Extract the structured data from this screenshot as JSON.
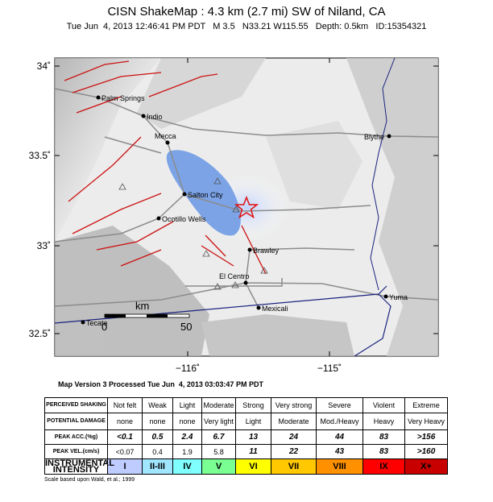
{
  "header": {
    "title": "CISN ShakeMap : 4.3 km (2.7 mi) SW of Niland, CA",
    "subtitle": "Tue Jun  4, 2013 12:46:41 PM PDT   M 3.5   N33.21 W115.55   Depth: 0.5km   ID:15354321"
  },
  "map": {
    "lat_labels": [
      "34˚",
      "33.5˚",
      "33˚",
      "32.5˚"
    ],
    "lon_labels": [
      "−116˚",
      "−115˚"
    ],
    "places": [
      "Palm Springs",
      "Indio",
      "Mecca",
      "Blythe",
      "Salton City",
      "Ocotillo Wells",
      "Brawley",
      "El Centro",
      "Mexicali",
      "Yuma",
      "Tecate"
    ],
    "scale": {
      "unit": "km",
      "start": "0",
      "end": "50"
    },
    "version": "Map Version 3 Processed Tue Jun  4, 2013 03:03:47 PM PDT"
  },
  "table": {
    "rows": [
      [
        "PERCEIVED SHAKING",
        "Not felt",
        "Weak",
        "Light",
        "Moderate",
        "Strong",
        "Very strong",
        "Severe",
        "Violent",
        "Extreme"
      ],
      [
        "POTENTIAL DAMAGE",
        "none",
        "none",
        "none",
        "Very light",
        "Light",
        "Moderate",
        "Mod./Heavy",
        "Heavy",
        "Very Heavy"
      ],
      [
        "PEAK ACC.(%g)",
        "<0.1",
        "0.5",
        "2.4",
        "6.7",
        "13",
        "24",
        "44",
        "83",
        ">156"
      ],
      [
        "PEAK VEL.(cm/s)",
        "<0.07",
        "0.4",
        "1.9",
        "5.8",
        "11",
        "22",
        "43",
        "83",
        ">160"
      ],
      [
        "INSTRUMENTAL INTENSITY",
        "I",
        "II-III",
        "IV",
        "V",
        "VI",
        "VII",
        "VIII",
        "IX",
        "X+"
      ]
    ]
  },
  "footnote": "Scale based upon Wald, et al.; 1999"
}
